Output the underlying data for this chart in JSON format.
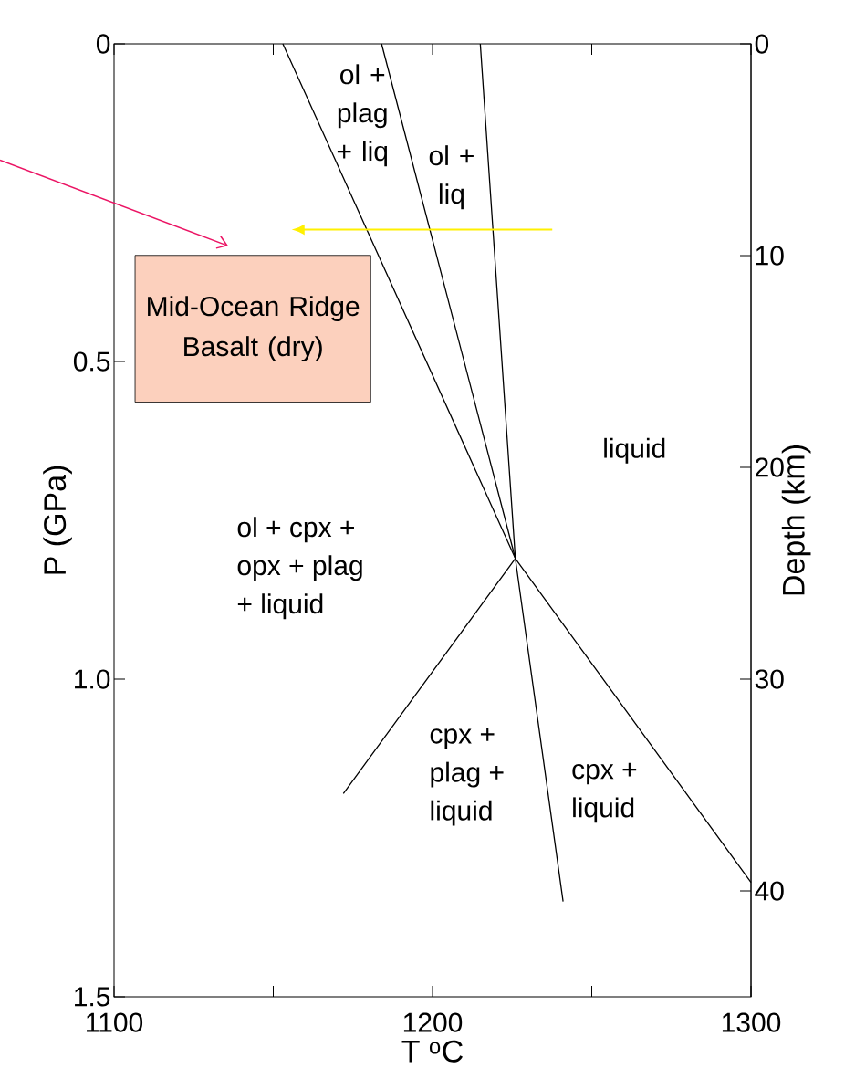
{
  "chart_data": {
    "type": "line",
    "title": "Mid-Ocean Ridge Basalt (dry)",
    "xlabel": "T $^{o}$C",
    "ylabel": "P (GPa)",
    "y2label": "Depth (km)",
    "xlim": [
      1100,
      1300
    ],
    "ylim": [
      1.5,
      0
    ],
    "y2lim": [
      45,
      0
    ],
    "xticks": [
      1100,
      {
        "value": 1150,
        "label": null
      },
      1200,
      {
        "value": 1250,
        "label": null
      },
      1300
    ],
    "yticks": [
      0,
      0.5,
      {
        "value": 1.0,
        "label": "1.0"
      },
      1.5
    ],
    "y2ticks": [
      0,
      10,
      20,
      30,
      40
    ],
    "grid": false,
    "marker": "none",
    "line_style": "solid",
    "series": [
      {
        "color": "#000000",
        "x": [
          1153,
          1226,
          1300
        ],
        "values": [
          0,
          0.81,
          1.32
        ]
      },
      {
        "color": "#000000",
        "x": [
          1184,
          1226,
          1172
        ],
        "values": [
          0,
          0.81,
          1.18
        ]
      },
      {
        "color": "#000000",
        "x": [
          1215,
          1226,
          1241
        ],
        "values": [
          0,
          0.81,
          1.35
        ]
      }
    ],
    "annotations": [
      "ol + plag + liq",
      "ol + liq",
      "liquid",
      "ol + cpx + opx + plag + liquid",
      "cpx + plag + liquid",
      "cpx + liquid"
    ]
  }
}
